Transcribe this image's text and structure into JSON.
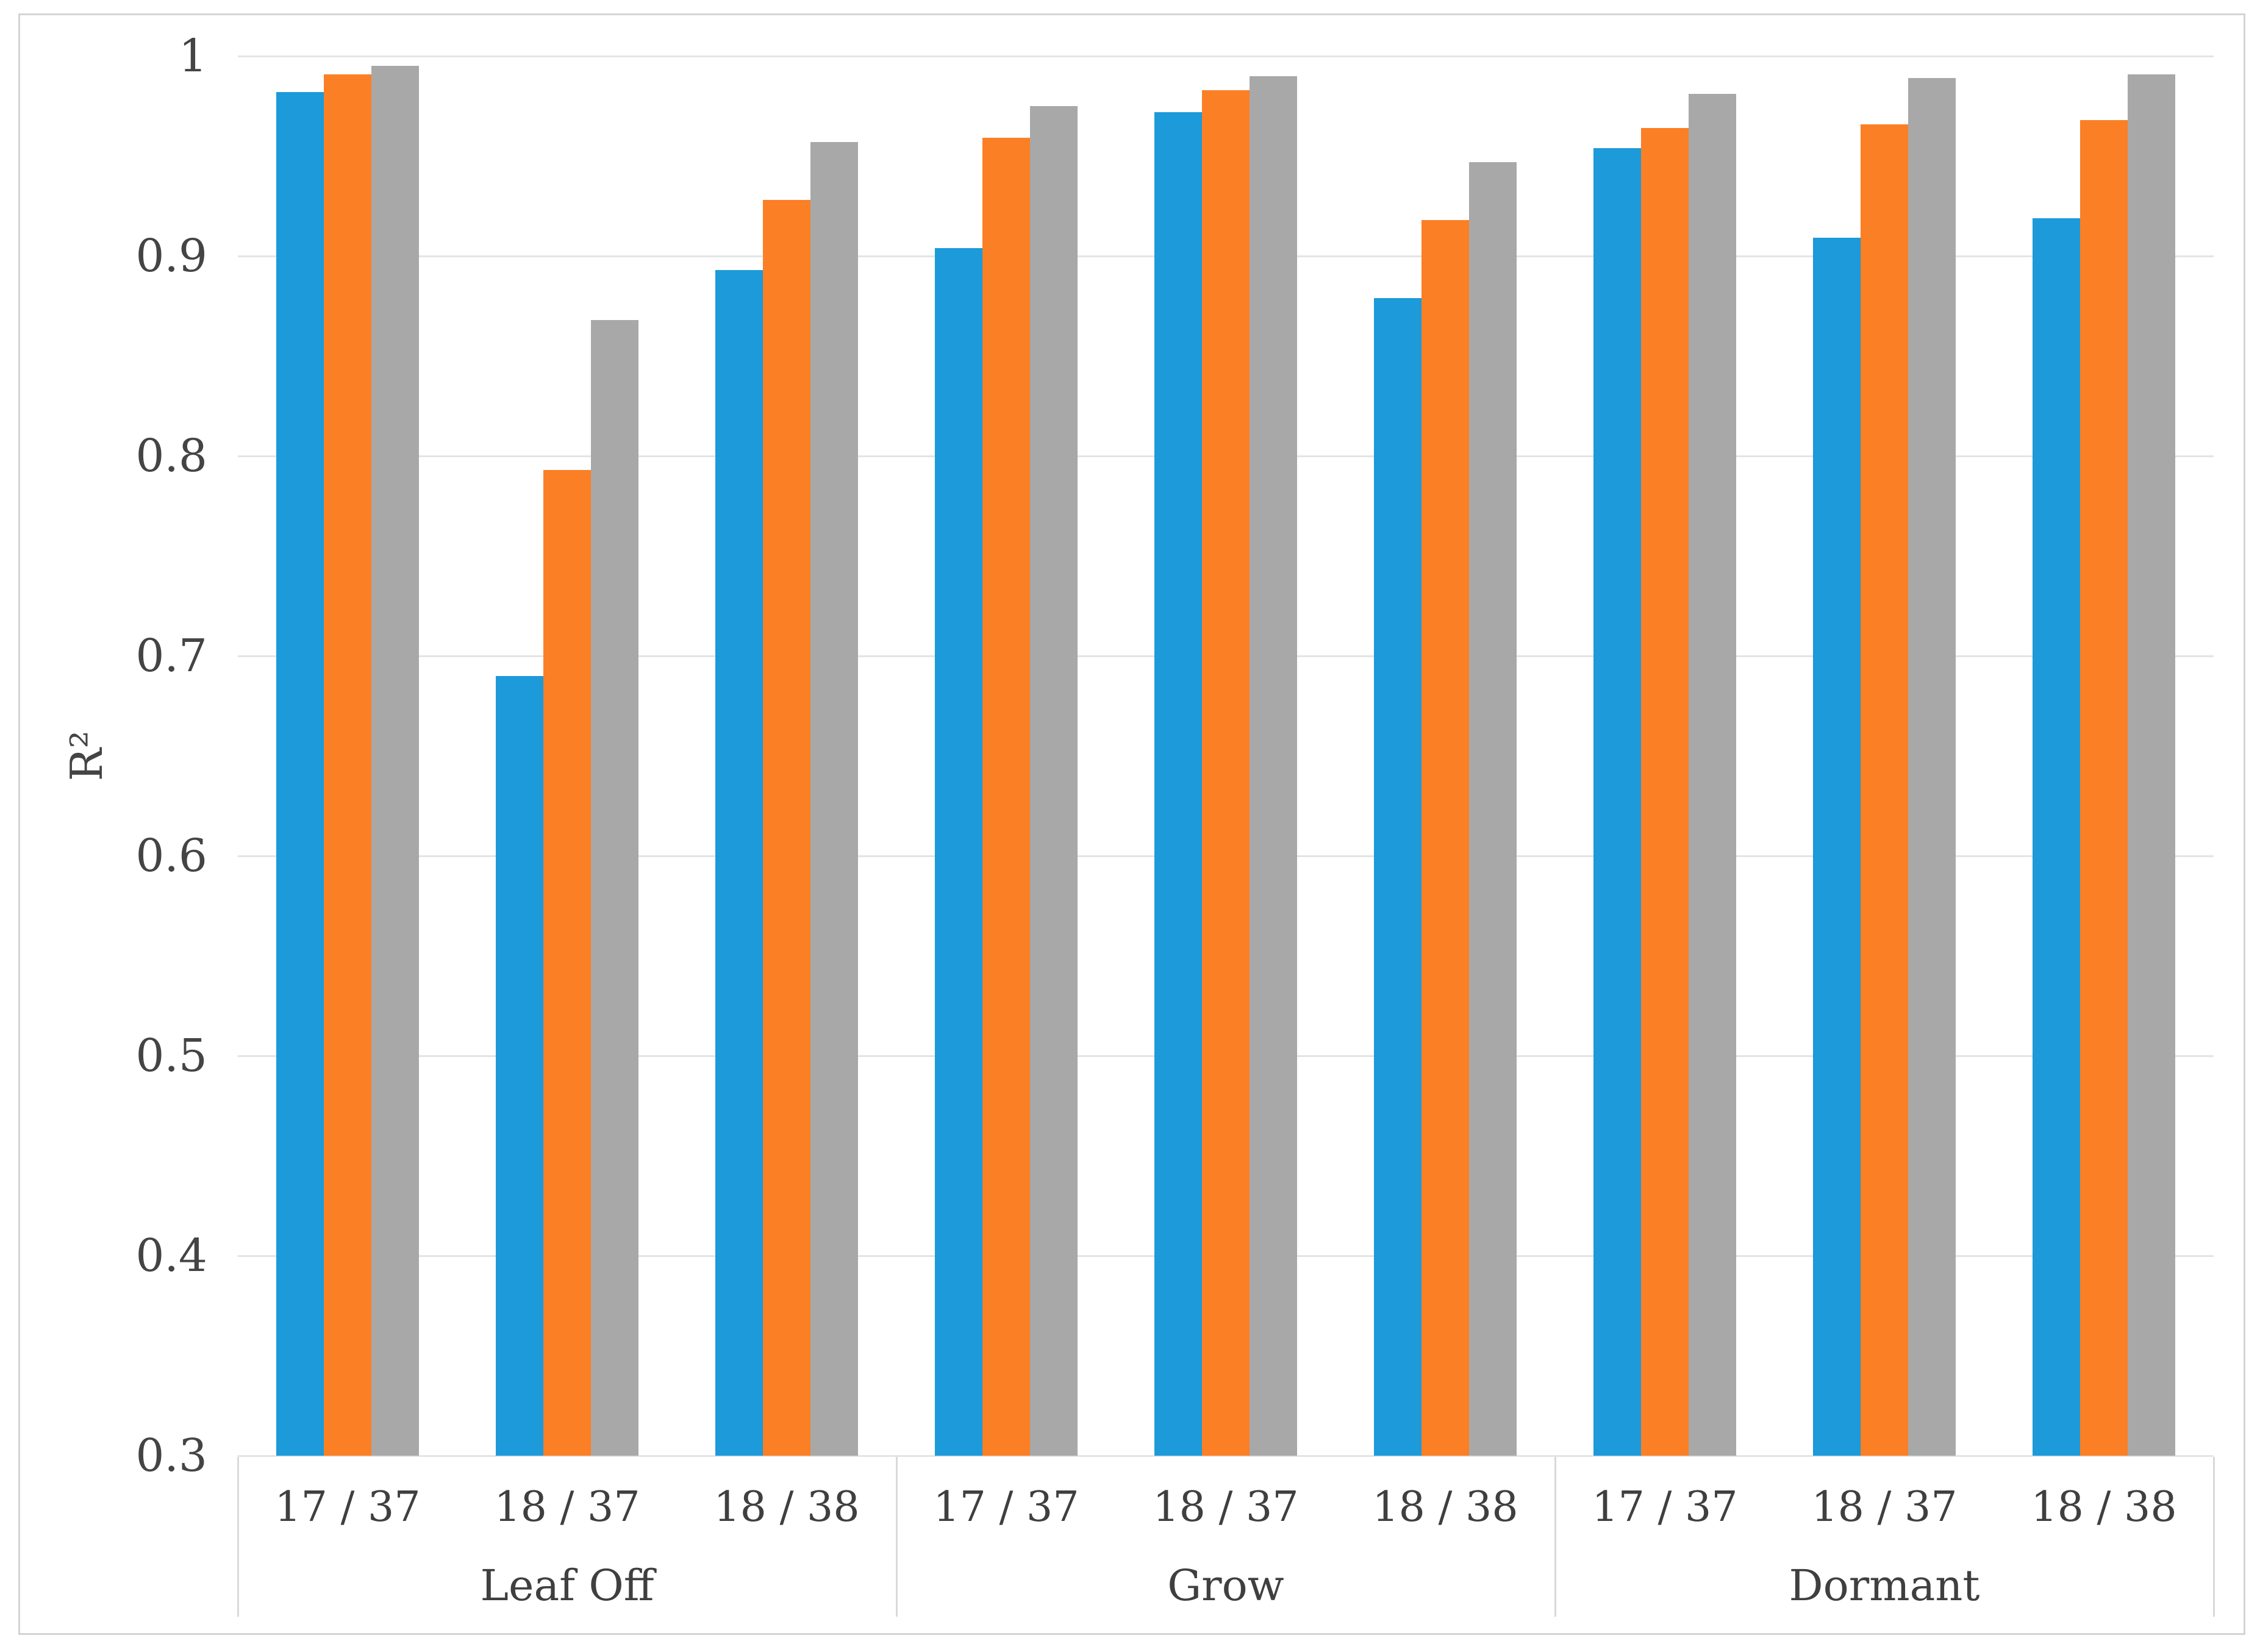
{
  "palette": {
    "background": "#ffffff",
    "border": "#d4d4d4",
    "gridline": "#e4e4e4",
    "separator": "#d9d9d9",
    "axis_text": "#444444",
    "blue": "#1c9ad9",
    "orange": "#fb7f25",
    "gray": "#a8a8a8"
  },
  "chart_data": {
    "type": "bar",
    "title": "",
    "xlabel": "",
    "ylabel": "R²",
    "ylim": [
      0.3,
      1.0
    ],
    "ytick_labels": [
      "1",
      "0.9",
      "0.8",
      "0.7",
      "0.6",
      "0.5",
      "0.4",
      "0.3"
    ],
    "ytick_values": [
      1.0,
      0.9,
      0.8,
      0.7,
      0.6,
      0.5,
      0.4,
      0.3
    ],
    "grid": "horizontal",
    "legend_position": "none",
    "group_labels": [
      "Leaf Off",
      "Grow",
      "Dormant"
    ],
    "categories": [
      "17 / 37",
      "18 / 37",
      "18 / 38",
      "17 / 37",
      "18 / 37",
      "18 / 38",
      "17 / 37",
      "18 / 37",
      "18 / 38"
    ],
    "category_groups": [
      "Leaf Off",
      "Leaf Off",
      "Leaf Off",
      "Grow",
      "Grow",
      "Grow",
      "Dormant",
      "Dormant",
      "Dormant"
    ],
    "series": [
      {
        "name": "blue",
        "color": "#1c9ad9",
        "values": [
          0.982,
          0.69,
          0.893,
          0.904,
          0.972,
          0.879,
          0.954,
          0.909,
          0.919
        ]
      },
      {
        "name": "orange",
        "color": "#fb7f25",
        "values": [
          0.991,
          0.793,
          0.928,
          0.959,
          0.983,
          0.918,
          0.964,
          0.966,
          0.968
        ]
      },
      {
        "name": "gray",
        "color": "#a8a8a8",
        "values": [
          0.995,
          0.868,
          0.957,
          0.975,
          0.99,
          0.947,
          0.981,
          0.989,
          0.991
        ]
      }
    ]
  }
}
